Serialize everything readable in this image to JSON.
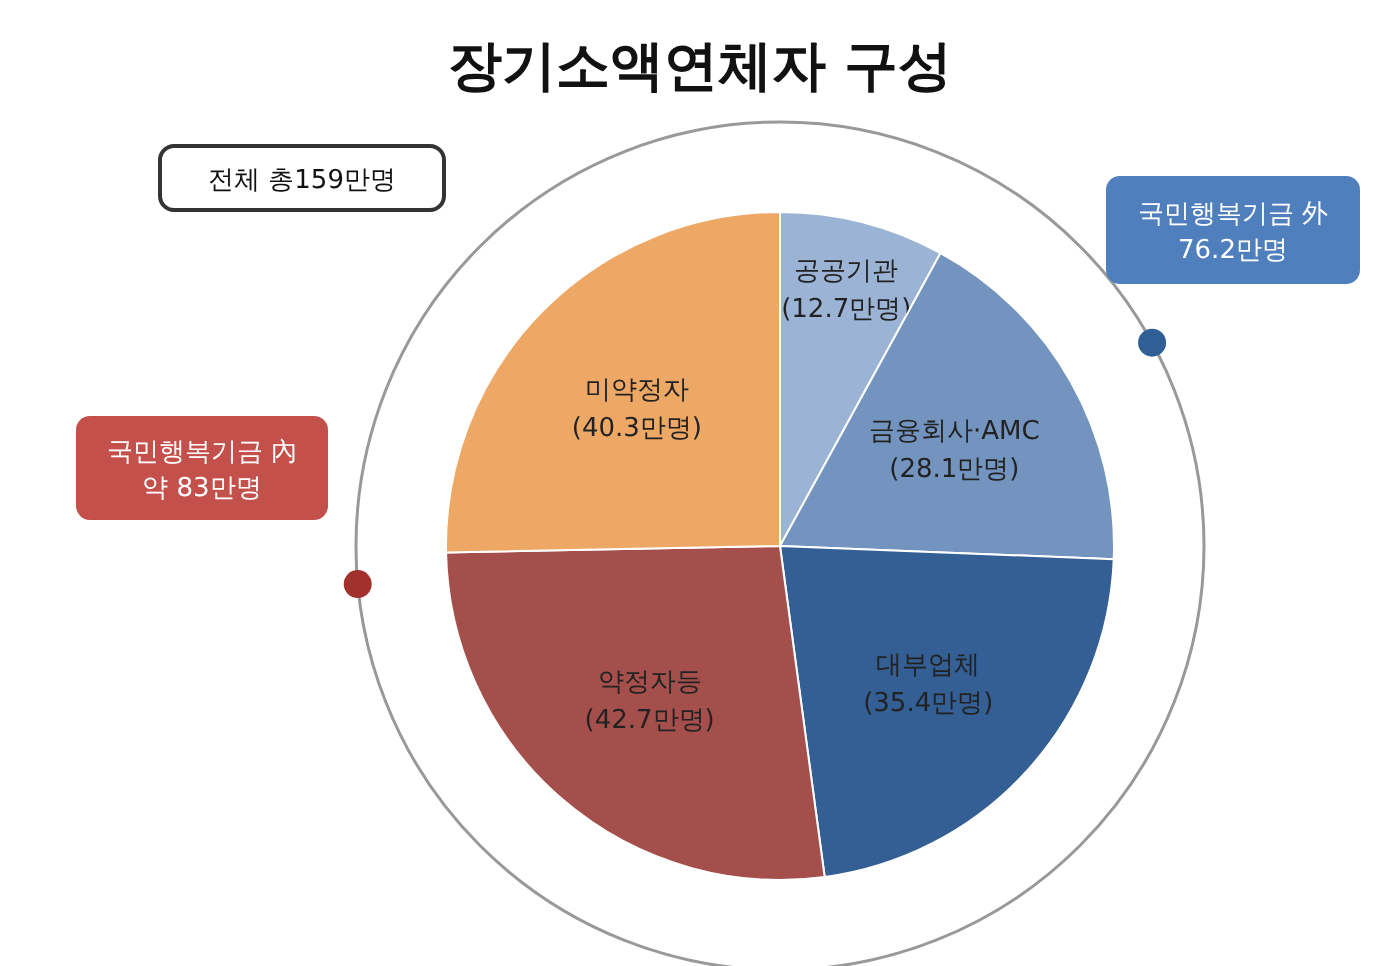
{
  "chart_data": {
    "type": "pie",
    "title": "장기소액연체자 구성",
    "categories": [
      "공공기관",
      "금융회사·AMC",
      "대부업체",
      "약정자등",
      "미약정자"
    ],
    "values": [
      12.7,
      28.1,
      35.4,
      42.7,
      40.3
    ],
    "value_labels": [
      "(12.7만명)",
      "(28.1만명)",
      "(35.4만명)",
      "(42.7만명)",
      "(40.3만명)"
    ],
    "colors": [
      "#9bb3d4",
      "#7394bf",
      "#345f94",
      "#a44f4b",
      "#eea865"
    ],
    "annotations": [
      "전체 총159만명",
      "국민행복기금 外\n76.2만명",
      "국민행복기금 內\n약 83만명"
    ]
  }
}
